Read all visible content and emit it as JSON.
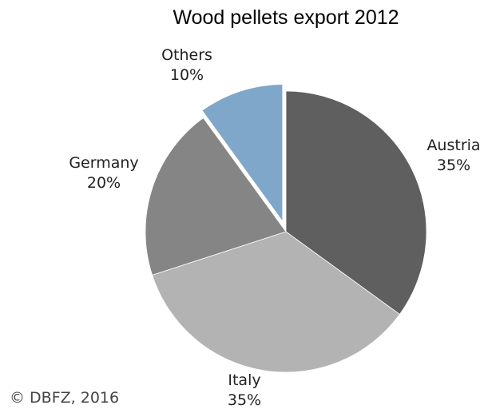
{
  "chart_data": {
    "type": "pie",
    "title": "Wood pellets export 2012",
    "start_angle_deg": 0,
    "direction": "clockwise",
    "slices": [
      {
        "label": "Austria",
        "value": 35,
        "value_label": "35%",
        "color": "#5f5f5f",
        "exploded": false
      },
      {
        "label": "Italy",
        "value": 35,
        "value_label": "35%",
        "color": "#b3b3b3",
        "exploded": false
      },
      {
        "label": "Germany",
        "value": 20,
        "value_label": "20%",
        "color": "#858585",
        "exploded": false
      },
      {
        "label": "Others",
        "value": 10,
        "value_label": "10%",
        "color": "#7fa7ca",
        "exploded": true
      }
    ]
  },
  "credit": "© DBFZ, 2016"
}
